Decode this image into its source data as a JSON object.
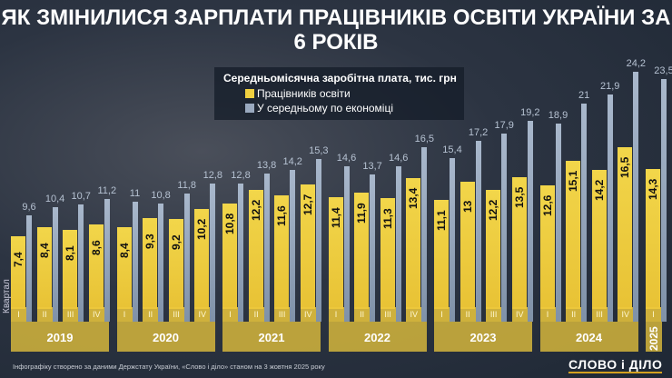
{
  "title": "Як змінилися зарплати працівників освіти України за 6 років",
  "footer": "Інфографіку створено за даними Держстату України, «Слово і діло» станом на 3 жовтня 2025 року",
  "logo": "СЛОВО і ДІЛО",
  "chart_data": {
    "type": "bar",
    "title": "Середньомісячна заробітна плата, тис. грн",
    "quarter_axis_label": "Квартал",
    "years": [
      "2019",
      "2020",
      "2021",
      "2022",
      "2023",
      "2024",
      "2025"
    ],
    "quarters": [
      "I",
      "II",
      "III",
      "IV"
    ],
    "legend_position": "top-center",
    "series": [
      {
        "name": "Працівників освіти",
        "color": "#f0d040",
        "values": [
          [
            7.4,
            8.4,
            8.1,
            8.6
          ],
          [
            8.4,
            9.3,
            9.2,
            10.2
          ],
          [
            10.8,
            12.2,
            11.6,
            12.7
          ],
          [
            11.4,
            11.9,
            11.3,
            13.4
          ],
          [
            11.1,
            13,
            12.2,
            13.5
          ],
          [
            12.6,
            15.1,
            14.2,
            16.5
          ],
          [
            14.3
          ]
        ]
      },
      {
        "name": "У середньому по економіці",
        "color": "#9aaac0",
        "values": [
          [
            9.6,
            10.4,
            10.7,
            11.2
          ],
          [
            11,
            10.8,
            11.8,
            12.8
          ],
          [
            12.8,
            13.8,
            14.2,
            15.3
          ],
          [
            14.6,
            13.7,
            14.6,
            16.5
          ],
          [
            15.4,
            17.2,
            17.9,
            19.2
          ],
          [
            18.9,
            21,
            21.9,
            24.2
          ],
          [
            23.5
          ]
        ]
      }
    ]
  }
}
